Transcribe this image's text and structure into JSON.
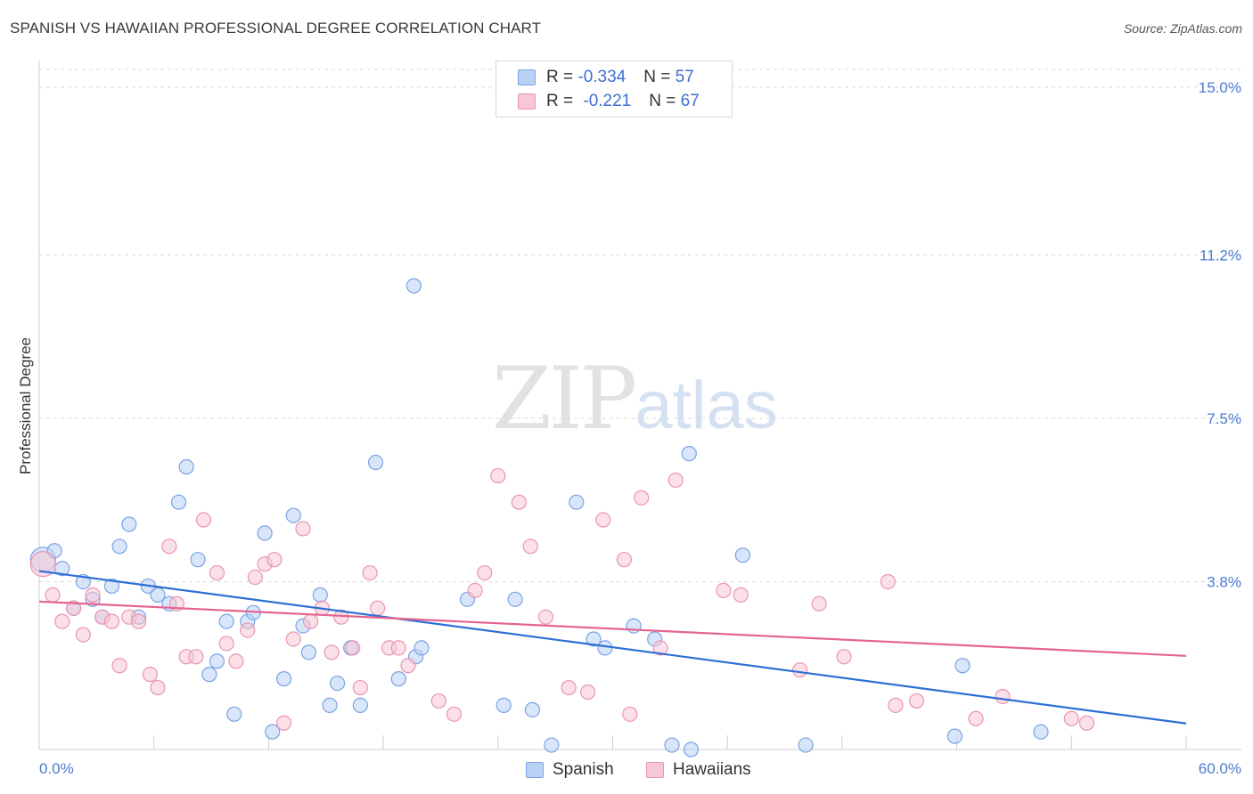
{
  "title": "SPANISH VS HAWAIIAN PROFESSIONAL DEGREE CORRELATION CHART",
  "source": "Source: ZipAtlas.com",
  "watermark": {
    "zip": "ZIP",
    "atlas": "atlas"
  },
  "legend": {
    "r_label": "R = ",
    "n_label": "N = ",
    "spanish": {
      "r": "-0.334",
      "n": "57"
    },
    "hawaiians": {
      "r": "-0.221",
      "n": "67"
    }
  },
  "colors": {
    "spanish_fill": "#b9d1f5",
    "spanish_stroke": "#7aa3e3",
    "spanish_line": "#2d6fd6",
    "hawaiians_fill": "#f7c7d5",
    "hawaiians_stroke": "#e995b0",
    "hawaiians_line": "#e3648f",
    "axis_text": "#4a7bd0",
    "grid": "#d9d9d9"
  },
  "chart_data": {
    "type": "scatter",
    "title": "SPANISH VS HAWAIIAN PROFESSIONAL DEGREE CORRELATION CHART",
    "xlabel": "",
    "ylabel": "Professional Degree",
    "xlim": [
      0,
      60
    ],
    "ylim": [
      0,
      15.4
    ],
    "x_tick_labels": [
      "0.0%",
      "60.0%"
    ],
    "y_ticks": [
      3.8,
      7.5,
      11.2,
      15.0
    ],
    "y_tick_labels": [
      "3.8%",
      "7.5%",
      "11.2%",
      "15.0%"
    ],
    "legend_position": "top-center",
    "series": [
      {
        "name": "Spanish",
        "r": -0.334,
        "n": 57,
        "trend": {
          "x": [
            0,
            60
          ],
          "y": [
            4.04,
            0.59
          ]
        },
        "points": [
          [
            0.2,
            4.3
          ],
          [
            0.8,
            4.5
          ],
          [
            1.2,
            4.1
          ],
          [
            1.8,
            3.2
          ],
          [
            2.3,
            3.8
          ],
          [
            2.8,
            3.4
          ],
          [
            3.3,
            3.0
          ],
          [
            3.8,
            3.7
          ],
          [
            4.2,
            4.6
          ],
          [
            4.7,
            5.1
          ],
          [
            5.2,
            3.0
          ],
          [
            5.7,
            3.7
          ],
          [
            6.2,
            3.5
          ],
          [
            6.8,
            3.3
          ],
          [
            7.3,
            5.6
          ],
          [
            7.7,
            6.4
          ],
          [
            8.3,
            4.3
          ],
          [
            8.9,
            1.7
          ],
          [
            9.3,
            2.0
          ],
          [
            9.8,
            2.9
          ],
          [
            10.2,
            0.8
          ],
          [
            10.9,
            2.9
          ],
          [
            11.2,
            3.1
          ],
          [
            11.8,
            4.9
          ],
          [
            12.2,
            0.4
          ],
          [
            12.8,
            1.6
          ],
          [
            13.3,
            5.3
          ],
          [
            13.8,
            2.8
          ],
          [
            14.1,
            2.2
          ],
          [
            14.7,
            3.5
          ],
          [
            15.2,
            1.0
          ],
          [
            15.6,
            1.5
          ],
          [
            16.3,
            2.3
          ],
          [
            16.8,
            1.0
          ],
          [
            17.6,
            6.5
          ],
          [
            18.8,
            1.6
          ],
          [
            19.7,
            2.1
          ],
          [
            20.0,
            2.3
          ],
          [
            19.6,
            10.5
          ],
          [
            22.4,
            3.4
          ],
          [
            24.3,
            1.0
          ],
          [
            24.9,
            3.4
          ],
          [
            25.8,
            0.9
          ],
          [
            26.8,
            0.1
          ],
          [
            28.1,
            5.6
          ],
          [
            29.0,
            2.5
          ],
          [
            29.6,
            2.3
          ],
          [
            31.1,
            2.8
          ],
          [
            32.2,
            2.5
          ],
          [
            33.1,
            0.1
          ],
          [
            34.0,
            6.7
          ],
          [
            34.1,
            0.0
          ],
          [
            36.8,
            4.4
          ],
          [
            40.1,
            0.1
          ],
          [
            47.9,
            0.3
          ],
          [
            48.3,
            1.9
          ],
          [
            52.4,
            0.4
          ]
        ]
      },
      {
        "name": "Hawaiians",
        "r": -0.221,
        "n": 67,
        "trend": {
          "x": [
            0,
            60
          ],
          "y": [
            3.35,
            2.12
          ]
        },
        "points": [
          [
            0.2,
            4.2
          ],
          [
            0.7,
            3.5
          ],
          [
            1.2,
            2.9
          ],
          [
            1.8,
            3.2
          ],
          [
            2.3,
            2.6
          ],
          [
            2.8,
            3.5
          ],
          [
            3.3,
            3.0
          ],
          [
            3.8,
            2.9
          ],
          [
            4.2,
            1.9
          ],
          [
            4.7,
            3.0
          ],
          [
            5.2,
            2.9
          ],
          [
            5.8,
            1.7
          ],
          [
            6.2,
            1.4
          ],
          [
            6.8,
            4.6
          ],
          [
            7.2,
            3.3
          ],
          [
            7.7,
            2.1
          ],
          [
            8.2,
            2.1
          ],
          [
            8.6,
            5.2
          ],
          [
            9.3,
            4.0
          ],
          [
            9.8,
            2.4
          ],
          [
            10.3,
            2.0
          ],
          [
            10.9,
            2.7
          ],
          [
            11.3,
            3.9
          ],
          [
            11.8,
            4.2
          ],
          [
            12.3,
            4.3
          ],
          [
            12.8,
            0.6
          ],
          [
            13.3,
            2.5
          ],
          [
            13.8,
            5.0
          ],
          [
            14.2,
            2.9
          ],
          [
            14.8,
            3.2
          ],
          [
            15.3,
            2.2
          ],
          [
            15.8,
            3.0
          ],
          [
            16.4,
            2.3
          ],
          [
            16.8,
            1.4
          ],
          [
            17.3,
            4.0
          ],
          [
            17.7,
            3.2
          ],
          [
            18.3,
            2.3
          ],
          [
            18.8,
            2.3
          ],
          [
            19.3,
            1.9
          ],
          [
            20.9,
            1.1
          ],
          [
            21.7,
            0.8
          ],
          [
            22.8,
            3.6
          ],
          [
            23.3,
            4.0
          ],
          [
            24.0,
            6.2
          ],
          [
            25.1,
            5.6
          ],
          [
            25.7,
            4.6
          ],
          [
            26.5,
            3.0
          ],
          [
            27.7,
            1.4
          ],
          [
            28.7,
            1.3
          ],
          [
            29.5,
            5.2
          ],
          [
            30.6,
            4.3
          ],
          [
            30.9,
            0.8
          ],
          [
            31.5,
            5.7
          ],
          [
            32.5,
            2.3
          ],
          [
            33.3,
            6.1
          ],
          [
            35.8,
            3.6
          ],
          [
            36.7,
            3.5
          ],
          [
            39.8,
            1.8
          ],
          [
            40.8,
            3.3
          ],
          [
            42.1,
            2.1
          ],
          [
            44.4,
            3.8
          ],
          [
            44.8,
            1.0
          ],
          [
            45.9,
            1.1
          ],
          [
            49.0,
            0.7
          ],
          [
            50.4,
            1.2
          ],
          [
            54.0,
            0.7
          ],
          [
            54.8,
            0.6
          ]
        ]
      }
    ]
  }
}
